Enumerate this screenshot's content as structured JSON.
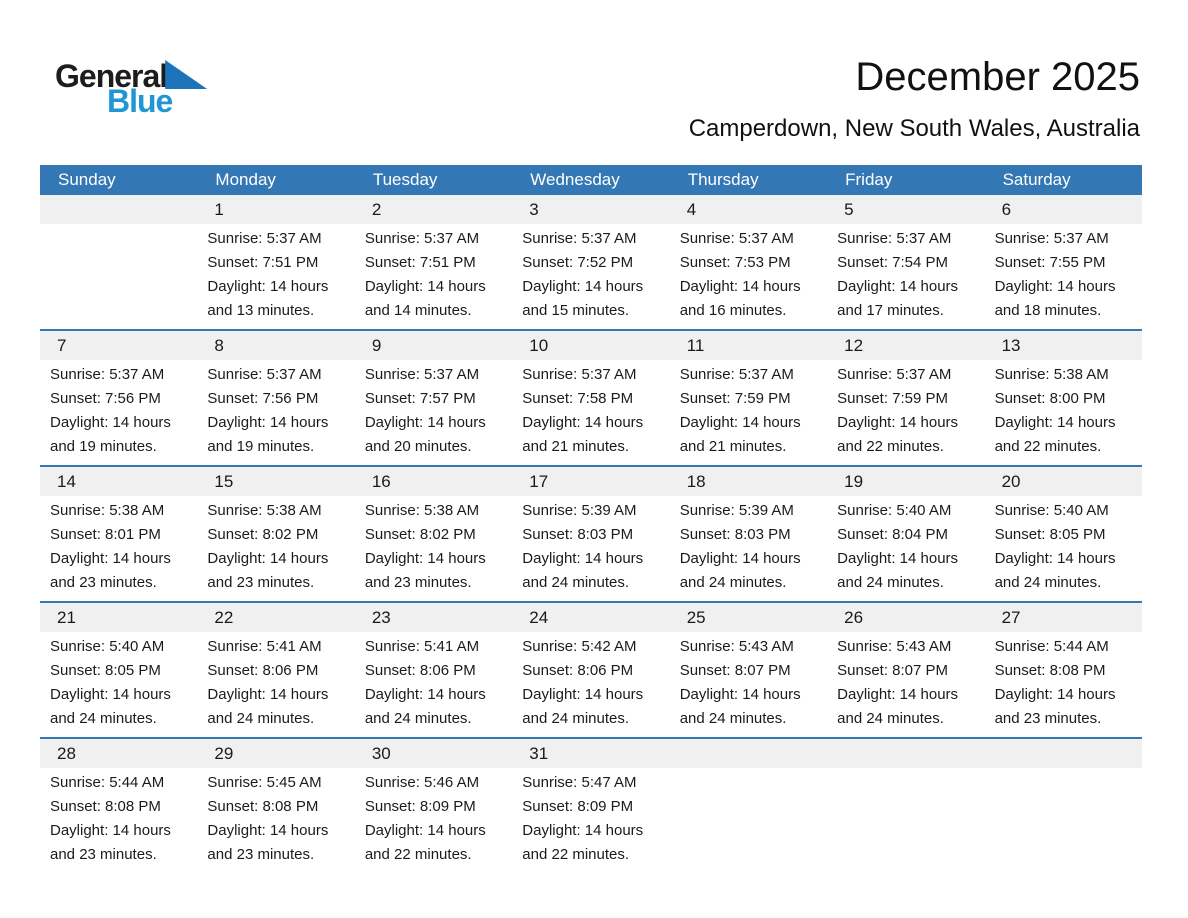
{
  "colors": {
    "header_blue": "#3377b5",
    "strip_gray": "#f0f0f0",
    "logo_blue": "#2196d4",
    "logo_triangle": "#1c75bb"
  },
  "logo": {
    "general": "General",
    "blue": "Blue"
  },
  "header": {
    "title": "December 2025",
    "subtitle": "Camperdown, New South Wales, Australia"
  },
  "weekdays": [
    "Sunday",
    "Monday",
    "Tuesday",
    "Wednesday",
    "Thursday",
    "Friday",
    "Saturday"
  ],
  "weeks": [
    [
      null,
      {
        "day": "1",
        "sunrise": "Sunrise: 5:37 AM",
        "sunset": "Sunset: 7:51 PM",
        "daylight": "Daylight: 14 hours and 13 minutes."
      },
      {
        "day": "2",
        "sunrise": "Sunrise: 5:37 AM",
        "sunset": "Sunset: 7:51 PM",
        "daylight": "Daylight: 14 hours and 14 minutes."
      },
      {
        "day": "3",
        "sunrise": "Sunrise: 5:37 AM",
        "sunset": "Sunset: 7:52 PM",
        "daylight": "Daylight: 14 hours and 15 minutes."
      },
      {
        "day": "4",
        "sunrise": "Sunrise: 5:37 AM",
        "sunset": "Sunset: 7:53 PM",
        "daylight": "Daylight: 14 hours and 16 minutes."
      },
      {
        "day": "5",
        "sunrise": "Sunrise: 5:37 AM",
        "sunset": "Sunset: 7:54 PM",
        "daylight": "Daylight: 14 hours and 17 minutes."
      },
      {
        "day": "6",
        "sunrise": "Sunrise: 5:37 AM",
        "sunset": "Sunset: 7:55 PM",
        "daylight": "Daylight: 14 hours and 18 minutes."
      }
    ],
    [
      {
        "day": "7",
        "sunrise": "Sunrise: 5:37 AM",
        "sunset": "Sunset: 7:56 PM",
        "daylight": "Daylight: 14 hours and 19 minutes."
      },
      {
        "day": "8",
        "sunrise": "Sunrise: 5:37 AM",
        "sunset": "Sunset: 7:56 PM",
        "daylight": "Daylight: 14 hours and 19 minutes."
      },
      {
        "day": "9",
        "sunrise": "Sunrise: 5:37 AM",
        "sunset": "Sunset: 7:57 PM",
        "daylight": "Daylight: 14 hours and 20 minutes."
      },
      {
        "day": "10",
        "sunrise": "Sunrise: 5:37 AM",
        "sunset": "Sunset: 7:58 PM",
        "daylight": "Daylight: 14 hours and 21 minutes."
      },
      {
        "day": "11",
        "sunrise": "Sunrise: 5:37 AM",
        "sunset": "Sunset: 7:59 PM",
        "daylight": "Daylight: 14 hours and 21 minutes."
      },
      {
        "day": "12",
        "sunrise": "Sunrise: 5:37 AM",
        "sunset": "Sunset: 7:59 PM",
        "daylight": "Daylight: 14 hours and 22 minutes."
      },
      {
        "day": "13",
        "sunrise": "Sunrise: 5:38 AM",
        "sunset": "Sunset: 8:00 PM",
        "daylight": "Daylight: 14 hours and 22 minutes."
      }
    ],
    [
      {
        "day": "14",
        "sunrise": "Sunrise: 5:38 AM",
        "sunset": "Sunset: 8:01 PM",
        "daylight": "Daylight: 14 hours and 23 minutes."
      },
      {
        "day": "15",
        "sunrise": "Sunrise: 5:38 AM",
        "sunset": "Sunset: 8:02 PM",
        "daylight": "Daylight: 14 hours and 23 minutes."
      },
      {
        "day": "16",
        "sunrise": "Sunrise: 5:38 AM",
        "sunset": "Sunset: 8:02 PM",
        "daylight": "Daylight: 14 hours and 23 minutes."
      },
      {
        "day": "17",
        "sunrise": "Sunrise: 5:39 AM",
        "sunset": "Sunset: 8:03 PM",
        "daylight": "Daylight: 14 hours and 24 minutes."
      },
      {
        "day": "18",
        "sunrise": "Sunrise: 5:39 AM",
        "sunset": "Sunset: 8:03 PM",
        "daylight": "Daylight: 14 hours and 24 minutes."
      },
      {
        "day": "19",
        "sunrise": "Sunrise: 5:40 AM",
        "sunset": "Sunset: 8:04 PM",
        "daylight": "Daylight: 14 hours and 24 minutes."
      },
      {
        "day": "20",
        "sunrise": "Sunrise: 5:40 AM",
        "sunset": "Sunset: 8:05 PM",
        "daylight": "Daylight: 14 hours and 24 minutes."
      }
    ],
    [
      {
        "day": "21",
        "sunrise": "Sunrise: 5:40 AM",
        "sunset": "Sunset: 8:05 PM",
        "daylight": "Daylight: 14 hours and 24 minutes."
      },
      {
        "day": "22",
        "sunrise": "Sunrise: 5:41 AM",
        "sunset": "Sunset: 8:06 PM",
        "daylight": "Daylight: 14 hours and 24 minutes."
      },
      {
        "day": "23",
        "sunrise": "Sunrise: 5:41 AM",
        "sunset": "Sunset: 8:06 PM",
        "daylight": "Daylight: 14 hours and 24 minutes."
      },
      {
        "day": "24",
        "sunrise": "Sunrise: 5:42 AM",
        "sunset": "Sunset: 8:06 PM",
        "daylight": "Daylight: 14 hours and 24 minutes."
      },
      {
        "day": "25",
        "sunrise": "Sunrise: 5:43 AM",
        "sunset": "Sunset: 8:07 PM",
        "daylight": "Daylight: 14 hours and 24 minutes."
      },
      {
        "day": "26",
        "sunrise": "Sunrise: 5:43 AM",
        "sunset": "Sunset: 8:07 PM",
        "daylight": "Daylight: 14 hours and 24 minutes."
      },
      {
        "day": "27",
        "sunrise": "Sunrise: 5:44 AM",
        "sunset": "Sunset: 8:08 PM",
        "daylight": "Daylight: 14 hours and 23 minutes."
      }
    ],
    [
      {
        "day": "28",
        "sunrise": "Sunrise: 5:44 AM",
        "sunset": "Sunset: 8:08 PM",
        "daylight": "Daylight: 14 hours and 23 minutes."
      },
      {
        "day": "29",
        "sunrise": "Sunrise: 5:45 AM",
        "sunset": "Sunset: 8:08 PM",
        "daylight": "Daylight: 14 hours and 23 minutes."
      },
      {
        "day": "30",
        "sunrise": "Sunrise: 5:46 AM",
        "sunset": "Sunset: 8:09 PM",
        "daylight": "Daylight: 14 hours and 22 minutes."
      },
      {
        "day": "31",
        "sunrise": "Sunrise: 5:47 AM",
        "sunset": "Sunset: 8:09 PM",
        "daylight": "Daylight: 14 hours and 22 minutes."
      },
      null,
      null,
      null
    ]
  ]
}
